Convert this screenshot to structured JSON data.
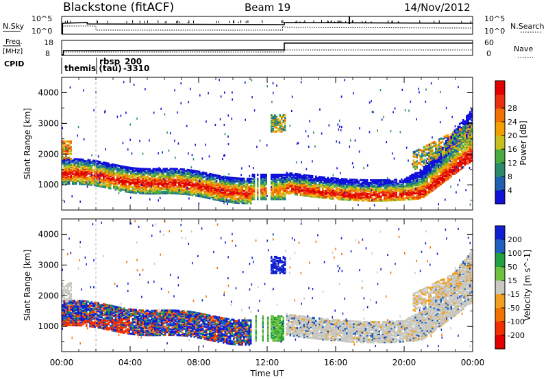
{
  "header": {
    "station": "Blackstone (fitACF)",
    "beam": "Beam 19",
    "date": "14/Nov/2012"
  },
  "top_panels": {
    "nsky_label": "N.Sky",
    "nsearch_label": "N.Search",
    "nsky_ticks": [
      "10^5",
      "10^0"
    ],
    "nsearch_ticks": [
      "10^5",
      "10^0"
    ],
    "freq_label_line1": "Freq.",
    "freq_label_line2": "[MHz]",
    "freq_ticks": [
      "18",
      "8"
    ],
    "nave_label": "Nave",
    "nave_ticks": [
      "60",
      "0"
    ],
    "cpid_label": "CPID",
    "cpid_modes": [
      {
        "name": "themis (tau)",
        "code": "-3310"
      },
      {
        "name": "rbsp",
        "code": "200"
      }
    ]
  },
  "chart_data": [
    {
      "type": "heatmap",
      "title": "",
      "xlabel": "",
      "ylabel": "Slant Range [km]",
      "x_ticks": [
        "00:00",
        "04:00",
        "08:00",
        "12:00",
        "16:00",
        "20:00",
        "00:00"
      ],
      "y_ticks": [
        "1000",
        "2000",
        "3000",
        "4000"
      ],
      "xlim_hours": [
        0,
        24
      ],
      "ylim_km": [
        180,
        4500
      ],
      "colorbar": {
        "label": "Power [dB]",
        "ticks": [
          "4",
          "8",
          "12",
          "16",
          "20",
          "24",
          "28"
        ],
        "range": [
          0,
          30
        ],
        "colors": [
          "#1010d8",
          "#2060b0",
          "#2a8a6a",
          "#48aa40",
          "#c8c020",
          "#f0a000",
          "#f07000",
          "#e83010",
          "#e00000"
        ]
      },
      "features": [
        {
          "hours": [
            0.0,
            11.0
          ],
          "range_km": [
            800,
            1600
          ],
          "description_level": "high"
        },
        {
          "hours": [
            13.0,
            23.5
          ],
          "range_km": [
            700,
            1500
          ],
          "description_level": "high"
        },
        {
          "hours": [
            12.2,
            13.0
          ],
          "range_km": [
            2700,
            3200
          ],
          "description_level": "medium"
        }
      ]
    },
    {
      "type": "heatmap",
      "title": "",
      "xlabel": "Time UT",
      "ylabel": "Slant Range [km]",
      "x_ticks": [
        "00:00",
        "04:00",
        "08:00",
        "12:00",
        "16:00",
        "20:00",
        "00:00"
      ],
      "y_ticks": [
        "1000",
        "2000",
        "3000",
        "4000"
      ],
      "xlim_hours": [
        0,
        24
      ],
      "ylim_km": [
        180,
        4500
      ],
      "colorbar": {
        "label": "Velocity [m s^-1]",
        "ticks": [
          "200",
          "100",
          "50",
          "15",
          "-15",
          "-50",
          "-100",
          "-200"
        ],
        "range": [
          -250,
          250
        ],
        "colors": [
          "#1020d0",
          "#2060c0",
          "#20a040",
          "#70c040",
          "#c8c8c0",
          "#f0a020",
          "#f07000",
          "#f03000",
          "#e00000"
        ]
      }
    }
  ]
}
